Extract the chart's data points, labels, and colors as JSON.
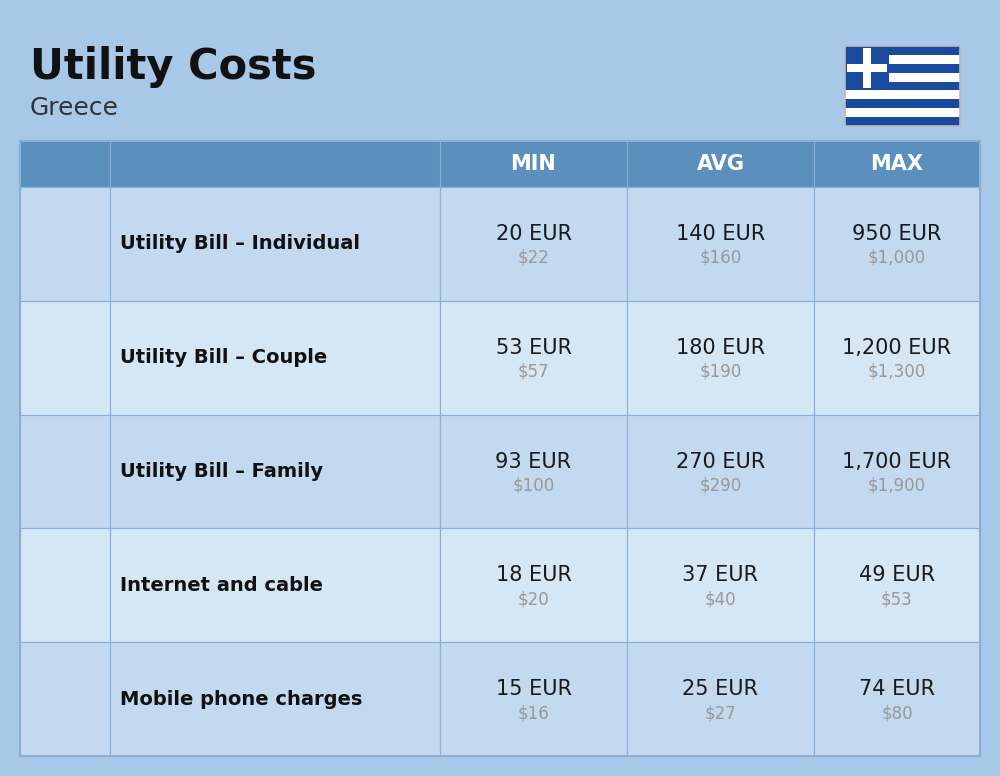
{
  "title": "Utility Costs",
  "subtitle": "Greece",
  "background_color": "#A8C8E8",
  "header_bg_color": "#5B8FBE",
  "header_text_color": "#FFFFFF",
  "row_bg_color_1": "#C2D9EF",
  "row_bg_color_2": "#D5E6F5",
  "border_color": "#8AAFD4",
  "col_header_labels": [
    "MIN",
    "AVG",
    "MAX"
  ],
  "rows": [
    {
      "label": "Utility Bill – Individual",
      "min_eur": "20 EUR",
      "min_usd": "$22",
      "avg_eur": "140 EUR",
      "avg_usd": "$160",
      "max_eur": "950 EUR",
      "max_usd": "$1,000"
    },
    {
      "label": "Utility Bill – Couple",
      "min_eur": "53 EUR",
      "min_usd": "$57",
      "avg_eur": "180 EUR",
      "avg_usd": "$190",
      "max_eur": "1,200 EUR",
      "max_usd": "$1,300"
    },
    {
      "label": "Utility Bill – Family",
      "min_eur": "93 EUR",
      "min_usd": "$100",
      "avg_eur": "270 EUR",
      "avg_usd": "$290",
      "max_eur": "1,700 EUR",
      "max_usd": "$1,900"
    },
    {
      "label": "Internet and cable",
      "min_eur": "18 EUR",
      "min_usd": "$20",
      "avg_eur": "37 EUR",
      "avg_usd": "$40",
      "max_eur": "49 EUR",
      "max_usd": "$53"
    },
    {
      "label": "Mobile phone charges",
      "min_eur": "15 EUR",
      "min_usd": "$16",
      "avg_eur": "25 EUR",
      "avg_usd": "$27",
      "max_eur": "74 EUR",
      "max_usd": "$80"
    }
  ],
  "title_fontsize": 30,
  "subtitle_fontsize": 18,
  "header_fontsize": 15,
  "label_fontsize": 14,
  "value_fontsize": 15,
  "usd_fontsize": 12,
  "usd_color": "#999999",
  "fig_width": 10.0,
  "fig_height": 7.76
}
